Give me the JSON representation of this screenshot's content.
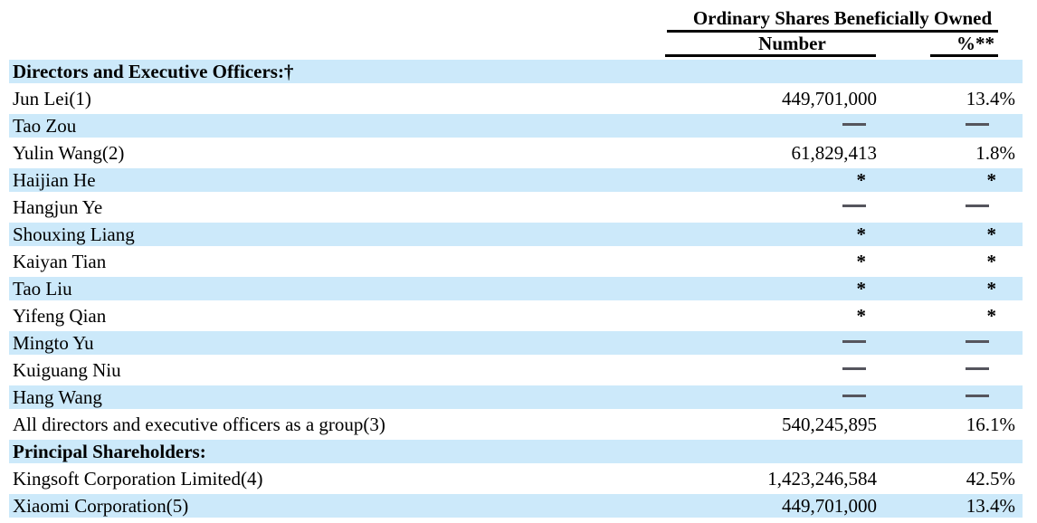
{
  "table": {
    "group_header": "Ordinary Shares Beneficially Owned",
    "columns": {
      "number": "Number",
      "percent": "%**"
    },
    "symbols": {
      "dash": "—",
      "asterisk": "*"
    },
    "colors": {
      "row_shade": "#cce9fa",
      "dash": "#55555d",
      "text": "#000000",
      "rule": "#000000"
    },
    "rows": [
      {
        "label": "Directors and Executive Officers:†",
        "number": "",
        "percent": "",
        "bold": true,
        "shaded": true
      },
      {
        "label": "Jun Lei(1)",
        "number": "449,701,000",
        "percent": "13.4%",
        "bold": false,
        "shaded": false
      },
      {
        "label": "Tao Zou",
        "number": "—",
        "percent": "—",
        "bold": false,
        "shaded": true
      },
      {
        "label": "Yulin Wang(2)",
        "number": "61,829,413",
        "percent": "1.8%",
        "bold": false,
        "shaded": false
      },
      {
        "label": "Haijian He",
        "number": "*",
        "percent": "*",
        "bold": false,
        "shaded": true
      },
      {
        "label": "Hangjun Ye",
        "number": "—",
        "percent": "—",
        "bold": false,
        "shaded": false
      },
      {
        "label": "Shouxing Liang",
        "number": "*",
        "percent": "*",
        "bold": false,
        "shaded": true
      },
      {
        "label": "Kaiyan Tian",
        "number": "*",
        "percent": "*",
        "bold": false,
        "shaded": false
      },
      {
        "label": "Tao Liu",
        "number": "*",
        "percent": "*",
        "bold": false,
        "shaded": true
      },
      {
        "label": "Yifeng Qian",
        "number": "*",
        "percent": "*",
        "bold": false,
        "shaded": false
      },
      {
        "label": "Mingto Yu",
        "number": "—",
        "percent": "—",
        "bold": false,
        "shaded": true
      },
      {
        "label": "Kuiguang Niu",
        "number": "—",
        "percent": "—",
        "bold": false,
        "shaded": false
      },
      {
        "label": "Hang Wang",
        "number": "—",
        "percent": "—",
        "bold": false,
        "shaded": true
      },
      {
        "label": "All directors and executive officers as a group(3)",
        "number": "540,245,895",
        "percent": "16.1%",
        "bold": false,
        "shaded": false
      },
      {
        "label": "Principal Shareholders:",
        "number": "",
        "percent": "",
        "bold": true,
        "shaded": true
      },
      {
        "label": "Kingsoft Corporation Limited(4)",
        "number": "1,423,246,584",
        "percent": "42.5%",
        "bold": false,
        "shaded": false
      },
      {
        "label": "Xiaomi Corporation(5)",
        "number": "449,701,000",
        "percent": "13.4%",
        "bold": false,
        "shaded": true
      }
    ]
  }
}
